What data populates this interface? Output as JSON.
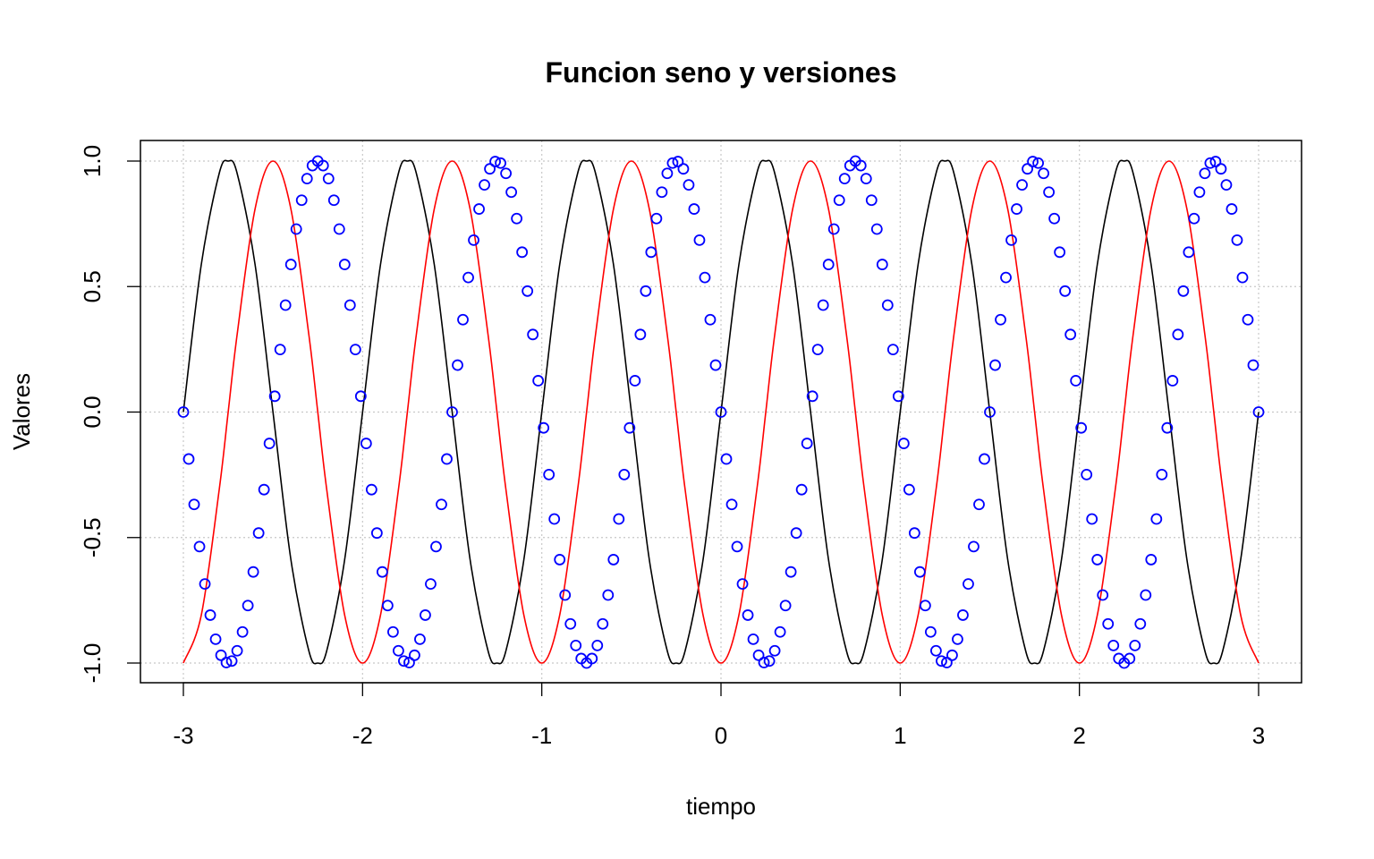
{
  "chart_data": {
    "type": "line",
    "title": "Funcion seno y versiones",
    "xlabel": "tiempo",
    "ylabel": "Valores",
    "xlim": [
      -3,
      3
    ],
    "ylim": [
      -1,
      1
    ],
    "x_ticks": [
      "-3",
      "-2",
      "-1",
      "0",
      "1",
      "2",
      "3"
    ],
    "y_ticks": [
      "-1.0",
      "-0.5",
      "0.0",
      "0.5",
      "1.0"
    ],
    "grid": true,
    "grid_style": "dotted",
    "legend": "none",
    "x": [
      -3.0,
      -2.9,
      -2.8,
      -2.75,
      -2.7,
      -2.6,
      -2.5,
      -2.4,
      -2.3,
      -2.25,
      -2.2,
      -2.1,
      -2.0,
      -1.9,
      -1.8,
      -1.75,
      -1.7,
      -1.6,
      -1.5,
      -1.4,
      -1.3,
      -1.25,
      -1.2,
      -1.1,
      -1.0,
      -0.9,
      -0.8,
      -0.75,
      -0.7,
      -0.6,
      -0.5,
      -0.4,
      -0.3,
      -0.25,
      -0.2,
      -0.1,
      0.0,
      0.1,
      0.2,
      0.25,
      0.3,
      0.4,
      0.5,
      0.6,
      0.7,
      0.75,
      0.8,
      0.9,
      1.0,
      1.1,
      1.2,
      1.25,
      1.3,
      1.4,
      1.5,
      1.6,
      1.7,
      1.75,
      1.8,
      1.9,
      2.0,
      2.1,
      2.2,
      2.25,
      2.3,
      2.4,
      2.5,
      2.6,
      2.7,
      2.75,
      2.8,
      2.9,
      3.0
    ],
    "series": [
      {
        "style": "line",
        "color": "#000000",
        "values": [
          0.0,
          0.588,
          0.951,
          1.0,
          0.951,
          0.588,
          0.0,
          -0.588,
          -0.951,
          -1.0,
          -0.951,
          -0.588,
          0.0,
          0.588,
          0.951,
          1.0,
          0.951,
          0.588,
          0.0,
          -0.588,
          -0.951,
          -1.0,
          -0.951,
          -0.588,
          0.0,
          0.588,
          0.951,
          1.0,
          0.951,
          0.588,
          0.0,
          -0.588,
          -0.951,
          -1.0,
          -0.951,
          -0.588,
          0.0,
          0.588,
          0.951,
          1.0,
          0.951,
          0.588,
          0.0,
          -0.588,
          -0.951,
          -1.0,
          -0.951,
          -0.588,
          0.0,
          0.588,
          0.951,
          1.0,
          0.951,
          0.588,
          0.0,
          -0.588,
          -0.951,
          -1.0,
          -0.951,
          -0.588,
          0.0,
          0.588,
          0.951,
          1.0,
          0.951,
          0.588,
          0.0,
          -0.588,
          -0.951,
          -1.0,
          -0.951,
          -0.588,
          0.0
        ]
      },
      {
        "style": "line",
        "color": "#ff0000",
        "values": [
          -1.0,
          -0.809,
          -0.309,
          0.0,
          0.309,
          0.809,
          1.0,
          0.809,
          0.309,
          0.0,
          -0.309,
          -0.809,
          -1.0,
          -0.809,
          -0.309,
          0.0,
          0.309,
          0.809,
          1.0,
          0.809,
          0.309,
          0.0,
          -0.309,
          -0.809,
          -1.0,
          -0.809,
          -0.309,
          0.0,
          0.309,
          0.809,
          1.0,
          0.809,
          0.309,
          0.0,
          -0.309,
          -0.809,
          -1.0,
          -0.809,
          -0.309,
          0.0,
          0.309,
          0.809,
          1.0,
          0.809,
          0.309,
          0.0,
          -0.309,
          -0.809,
          -1.0,
          -0.809,
          -0.309,
          0.0,
          0.309,
          0.809,
          1.0,
          0.809,
          0.309,
          0.0,
          -0.309,
          -0.809,
          -1.0,
          -0.809,
          -0.309,
          0.0,
          0.309,
          0.809,
          1.0,
          0.809,
          0.309,
          0.0,
          -0.309,
          -0.809,
          -1.0
        ]
      },
      {
        "style": "points",
        "color": "#0000ff",
        "x": [
          -3.0,
          -2.97,
          -2.94,
          -2.91,
          -2.88,
          -2.85,
          -2.82,
          -2.79,
          -2.76,
          -2.73,
          -2.7,
          -2.67,
          -2.64,
          -2.61,
          -2.58,
          -2.55,
          -2.52,
          -2.49,
          -2.46,
          -2.43,
          -2.4,
          -2.37,
          -2.34,
          -2.31,
          -2.28,
          -2.25,
          -2.22,
          -2.19,
          -2.16,
          -2.13,
          -2.1,
          -2.07,
          -2.04,
          -2.01,
          -1.98,
          -1.95,
          -1.92,
          -1.89,
          -1.86,
          -1.83,
          -1.8,
          -1.77,
          -1.74,
          -1.71,
          -1.68,
          -1.65,
          -1.62,
          -1.59,
          -1.56,
          -1.53,
          -1.5,
          -1.47,
          -1.44,
          -1.41,
          -1.38,
          -1.35,
          -1.32,
          -1.29,
          -1.26,
          -1.23,
          -1.2,
          -1.17,
          -1.14,
          -1.11,
          -1.08,
          -1.05,
          -1.02,
          -0.99,
          -0.96,
          -0.93,
          -0.9,
          -0.87,
          -0.84,
          -0.81,
          -0.78,
          -0.75,
          -0.72,
          -0.69,
          -0.66,
          -0.63,
          -0.6,
          -0.57,
          -0.54,
          -0.51,
          -0.48,
          -0.45,
          -0.42,
          -0.39,
          -0.36,
          -0.33,
          -0.3,
          -0.27,
          -0.24,
          -0.21,
          -0.18,
          -0.15,
          -0.12,
          -0.09,
          -0.06,
          -0.03,
          0.0,
          0.03,
          0.06,
          0.09,
          0.12,
          0.15,
          0.18,
          0.21,
          0.24,
          0.27,
          0.3,
          0.33,
          0.36,
          0.39,
          0.42,
          0.45,
          0.48,
          0.51,
          0.54,
          0.57,
          0.6,
          0.63,
          0.66,
          0.69,
          0.72,
          0.75,
          0.78,
          0.81,
          0.84,
          0.87,
          0.9,
          0.93,
          0.96,
          0.99,
          1.02,
          1.05,
          1.08,
          1.11,
          1.14,
          1.17,
          1.2,
          1.23,
          1.26,
          1.29,
          1.32,
          1.35,
          1.38,
          1.41,
          1.44,
          1.47,
          1.5,
          1.53,
          1.56,
          1.59,
          1.62,
          1.65,
          1.68,
          1.71,
          1.74,
          1.77,
          1.8,
          1.83,
          1.86,
          1.89,
          1.92,
          1.95,
          1.98,
          2.01,
          2.04,
          2.07,
          2.1,
          2.13,
          2.16,
          2.19,
          2.22,
          2.25,
          2.28,
          2.31,
          2.34,
          2.37,
          2.4,
          2.43,
          2.46,
          2.49,
          2.52,
          2.55,
          2.58,
          2.61,
          2.64,
          2.67,
          2.7,
          2.73,
          2.76,
          2.79,
          2.82,
          2.85,
          2.88,
          2.91,
          2.94,
          2.97,
          3.0
        ],
        "values": [
          0.0,
          -0.187,
          -0.368,
          -0.536,
          -0.685,
          -0.809,
          -0.905,
          -0.969,
          -0.998,
          -0.992,
          -0.951,
          -0.876,
          -0.771,
          -0.637,
          -0.482,
          -0.309,
          -0.125,
          0.063,
          0.249,
          0.426,
          0.588,
          0.729,
          0.844,
          0.93,
          0.982,
          1.0,
          0.982,
          0.93,
          0.844,
          0.729,
          0.588,
          0.426,
          0.249,
          0.063,
          -0.125,
          -0.309,
          -0.482,
          -0.637,
          -0.771,
          -0.876,
          -0.951,
          -0.992,
          -0.998,
          -0.969,
          -0.905,
          -0.809,
          -0.685,
          -0.536,
          -0.368,
          -0.187,
          0.0,
          0.187,
          0.368,
          0.536,
          0.685,
          0.809,
          0.905,
          0.969,
          0.998,
          0.992,
          0.951,
          0.876,
          0.771,
          0.637,
          0.482,
          0.309,
          0.125,
          -0.063,
          -0.249,
          -0.426,
          -0.588,
          -0.729,
          -0.844,
          -0.93,
          -0.982,
          -1.0,
          -0.982,
          -0.93,
          -0.844,
          -0.729,
          -0.588,
          -0.426,
          -0.249,
          -0.063,
          0.125,
          0.309,
          0.482,
          0.637,
          0.771,
          0.876,
          0.951,
          0.992,
          0.998,
          0.969,
          0.905,
          0.809,
          0.685,
          0.536,
          0.368,
          0.187,
          0.0,
          -0.187,
          -0.368,
          -0.536,
          -0.685,
          -0.809,
          -0.905,
          -0.969,
          -0.998,
          -0.992,
          -0.951,
          -0.876,
          -0.771,
          -0.637,
          -0.482,
          -0.309,
          -0.125,
          0.063,
          0.249,
          0.426,
          0.588,
          0.729,
          0.844,
          0.93,
          0.982,
          1.0,
          0.982,
          0.93,
          0.844,
          0.729,
          0.588,
          0.426,
          0.249,
          0.063,
          -0.125,
          -0.309,
          -0.482,
          -0.637,
          -0.771,
          -0.876,
          -0.951,
          -0.992,
          -0.998,
          -0.969,
          -0.905,
          -0.809,
          -0.685,
          -0.536,
          -0.368,
          -0.187,
          0.0,
          0.187,
          0.368,
          0.536,
          0.685,
          0.809,
          0.905,
          0.969,
          0.998,
          0.992,
          0.951,
          0.876,
          0.771,
          0.637,
          0.482,
          0.309,
          0.125,
          -0.063,
          -0.249,
          -0.426,
          -0.588,
          -0.729,
          -0.844,
          -0.93,
          -0.982,
          -1.0,
          -0.982,
          -0.93,
          -0.844,
          -0.729,
          -0.588,
          -0.426,
          -0.249,
          -0.063,
          0.125,
          0.309,
          0.482,
          0.637,
          0.771,
          0.876,
          0.951,
          0.992,
          0.998,
          0.969,
          0.905,
          0.809,
          0.685,
          0.536,
          0.368,
          0.187,
          0.0
        ]
      }
    ]
  }
}
